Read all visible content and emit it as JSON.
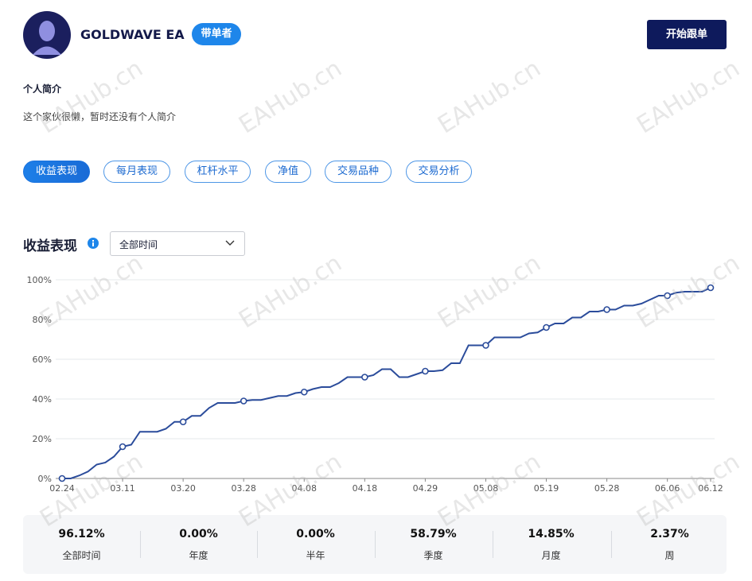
{
  "header": {
    "name": "GOLDWAVE EA",
    "badge": "带单者",
    "follow_button": "开始跟单"
  },
  "bio": {
    "title": "个人简介",
    "text": "这个家伙很懒，暂时还没有个人简介"
  },
  "tabs": [
    "收益表现",
    "每月表现",
    "杠杆水平",
    "净值",
    "交易品种",
    "交易分析"
  ],
  "section": {
    "title": "收益表现",
    "period": "全部时间"
  },
  "watermark": "EAHub.cn",
  "chart_data": {
    "type": "line",
    "color": "#2b4c9b",
    "grid": true,
    "categories": [
      "02.24",
      null,
      null,
      null,
      null,
      null,
      null,
      "03.11",
      null,
      null,
      null,
      null,
      null,
      null,
      "03.20",
      null,
      null,
      null,
      null,
      null,
      null,
      "03.28",
      null,
      null,
      null,
      null,
      null,
      null,
      "04.08",
      null,
      null,
      null,
      null,
      null,
      null,
      "04.18",
      null,
      null,
      null,
      null,
      null,
      null,
      "04.29",
      null,
      null,
      null,
      null,
      null,
      null,
      "05.08",
      null,
      null,
      null,
      null,
      null,
      null,
      "05.19",
      null,
      null,
      null,
      null,
      null,
      null,
      "05.28",
      null,
      null,
      null,
      null,
      null,
      null,
      "06.06",
      null,
      null,
      null,
      null,
      "06.12"
    ],
    "values": [
      0,
      0,
      1.5,
      3.5,
      7,
      8,
      11,
      16,
      17,
      23.5,
      23.5,
      23.5,
      25,
      28.5,
      28.5,
      31.5,
      31.5,
      35.5,
      38,
      38,
      38,
      39,
      39.5,
      39.5,
      40.5,
      41.5,
      41.5,
      43,
      43.5,
      45,
      46,
      46,
      48,
      51,
      51,
      51,
      52,
      55,
      55,
      51,
      51,
      52.5,
      54,
      54,
      54.5,
      58,
      58,
      67,
      67,
      67,
      71,
      71,
      71,
      71,
      73,
      73.5,
      76,
      78,
      78,
      81,
      81,
      84,
      84,
      85,
      85,
      87,
      87,
      88,
      90,
      92,
      92,
      93.5,
      94,
      94,
      94,
      96
    ],
    "ylim": [
      0,
      100
    ],
    "yticks": [
      {
        "value": 0,
        "label": "0%"
      },
      {
        "value": 20,
        "label": "20%"
      },
      {
        "value": 40,
        "label": "40%"
      },
      {
        "value": 60,
        "label": "60%"
      },
      {
        "value": 80,
        "label": "80%"
      },
      {
        "value": 100,
        "label": "100%"
      }
    ]
  },
  "stats": [
    {
      "value": "96.12%",
      "label": "全部时间"
    },
    {
      "value": "0.00%",
      "label": "年度"
    },
    {
      "value": "0.00%",
      "label": "半年"
    },
    {
      "value": "58.79%",
      "label": "季度"
    },
    {
      "value": "14.85%",
      "label": "月度"
    },
    {
      "value": "2.37%",
      "label": "周"
    }
  ]
}
